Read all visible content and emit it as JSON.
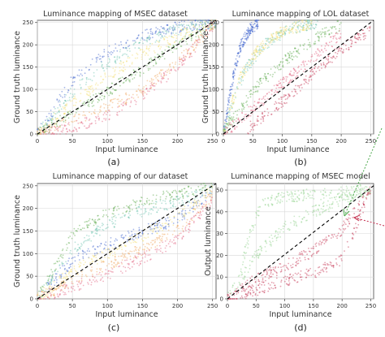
{
  "panels": [
    {
      "title": "Luminance mapping of MSEC dataset",
      "xlabel": "Input luminance",
      "ylabel": "Ground truth luminance",
      "label": "(a)",
      "xticks": [
        "0",
        "50",
        "100",
        "150",
        "200",
        "250"
      ],
      "yticks": [
        "0",
        "50",
        "100",
        "150",
        "200",
        "250"
      ]
    },
    {
      "title": "Luminance mapping of LOL dataset",
      "xlabel": "Input luminance",
      "ylabel": "Ground truth luminance",
      "label": "(b)",
      "xticks": [
        "0",
        "50",
        "100",
        "150",
        "200",
        "250"
      ],
      "yticks": [
        "0",
        "50",
        "100",
        "150",
        "200",
        "250"
      ]
    },
    {
      "title": "Luminance mapping of our dataset",
      "xlabel": "Input luminance",
      "ylabel": "Ground truth luminance",
      "label": "(c)",
      "xticks": [
        "0",
        "50",
        "100",
        "150",
        "200",
        "250"
      ],
      "yticks": [
        "0",
        "50",
        "100",
        "150",
        "200",
        "250"
      ]
    },
    {
      "title": "Luminance mapping of MSEC model",
      "xlabel": "Input luminance",
      "ylabel": "Output luminance",
      "label": "(d)",
      "xticks": [
        "0",
        "50",
        "100",
        "150",
        "200",
        "250"
      ],
      "yticks": [
        "0",
        "10",
        "20",
        "30",
        "40",
        "50"
      ]
    }
  ],
  "chart_data": [
    {
      "type": "scatter",
      "title": "Luminance mapping of MSEC dataset",
      "xlabel": "Input luminance",
      "ylabel": "Ground truth luminance",
      "xlim": [
        0,
        255
      ],
      "ylim": [
        0,
        255
      ],
      "grid": true,
      "reference_line": {
        "x": [
          0,
          255
        ],
        "y": [
          0,
          255
        ],
        "style": "dashed",
        "color": "#000000"
      },
      "series": [
        {
          "color": "#3a5fcd",
          "x": [
            0,
            50,
            100,
            150,
            200,
            255
          ],
          "y": [
            0,
            120,
            185,
            220,
            240,
            250
          ]
        },
        {
          "color": "#6cc4b0",
          "x": [
            0,
            50,
            100,
            150,
            200,
            255
          ],
          "y": [
            0,
            95,
            160,
            205,
            235,
            250
          ]
        },
        {
          "color": "#f0a35c",
          "x": [
            0,
            50,
            100,
            150,
            200,
            255
          ],
          "y": [
            0,
            30,
            60,
            100,
            160,
            250
          ]
        },
        {
          "color": "#e05a7a",
          "x": [
            0,
            50,
            100,
            150,
            200,
            255
          ],
          "y": [
            0,
            15,
            40,
            85,
            150,
            250
          ]
        },
        {
          "color": "#f2dc6b",
          "x": [
            0,
            50,
            100,
            150,
            200,
            255
          ],
          "y": [
            0,
            70,
            130,
            180,
            220,
            250
          ]
        },
        {
          "color": "#5aa84a",
          "x": [
            0,
            50,
            100,
            150,
            200,
            255
          ],
          "y": [
            0,
            45,
            95,
            145,
            200,
            250
          ]
        }
      ]
    },
    {
      "type": "scatter",
      "title": "Luminance mapping of LOL dataset",
      "xlabel": "Input luminance",
      "ylabel": "Ground truth luminance",
      "xlim": [
        0,
        255
      ],
      "ylim": [
        0,
        255
      ],
      "grid": true,
      "reference_line": {
        "x": [
          0,
          255
        ],
        "y": [
          0,
          255
        ],
        "style": "dashed",
        "color": "#000000"
      },
      "series": [
        {
          "color": "#3a5fcd",
          "x": [
            0,
            10,
            20,
            30,
            45,
            60
          ],
          "y": [
            0,
            80,
            150,
            200,
            235,
            250
          ]
        },
        {
          "color": "#6cc4b0",
          "x": [
            0,
            20,
            40,
            70,
            110,
            160
          ],
          "y": [
            0,
            90,
            150,
            200,
            235,
            250
          ]
        },
        {
          "color": "#f2dc6b",
          "x": [
            0,
            15,
            30,
            60,
            100,
            150
          ],
          "y": [
            0,
            70,
            130,
            190,
            230,
            250
          ]
        },
        {
          "color": "#5aa84a",
          "x": [
            0,
            30,
            60,
            100,
            150,
            200
          ],
          "y": [
            0,
            60,
            110,
            160,
            210,
            245
          ]
        },
        {
          "color": "#e05a7a",
          "x": [
            0,
            40,
            80,
            120,
            160,
            200
          ],
          "y": [
            0,
            45,
            90,
            135,
            180,
            225
          ]
        },
        {
          "color": "#c43050",
          "x": [
            40,
            80,
            120,
            160,
            200,
            250
          ],
          "y": [
            10,
            50,
            95,
            145,
            190,
            235
          ]
        }
      ]
    },
    {
      "type": "scatter",
      "title": "Luminance mapping of our dataset",
      "xlabel": "Input luminance",
      "ylabel": "Ground truth luminance",
      "xlim": [
        0,
        255
      ],
      "ylim": [
        0,
        255
      ],
      "grid": true,
      "reference_line": {
        "x": [
          0,
          255
        ],
        "y": [
          0,
          255
        ],
        "style": "dashed",
        "color": "#000000"
      },
      "series": [
        {
          "color": "#3a5fcd",
          "x": [
            0,
            50,
            100,
            150,
            200,
            250
          ],
          "y": [
            0,
            85,
            120,
            150,
            175,
            240
          ]
        },
        {
          "color": "#6cc4b0",
          "x": [
            0,
            50,
            100,
            150,
            200,
            250
          ],
          "y": [
            0,
            110,
            165,
            195,
            215,
            245
          ]
        },
        {
          "color": "#5aa84a",
          "x": [
            0,
            50,
            100,
            150,
            200,
            250
          ],
          "y": [
            0,
            140,
            190,
            215,
            232,
            250
          ]
        },
        {
          "color": "#f2dc6b",
          "x": [
            0,
            50,
            100,
            150,
            200,
            250
          ],
          "y": [
            0,
            60,
            100,
            140,
            180,
            240
          ]
        },
        {
          "color": "#f0a35c",
          "x": [
            0,
            50,
            100,
            150,
            200,
            250
          ],
          "y": [
            0,
            40,
            75,
            110,
            150,
            230
          ]
        },
        {
          "color": "#e05a7a",
          "x": [
            0,
            50,
            100,
            150,
            200,
            250
          ],
          "y": [
            0,
            25,
            55,
            90,
            130,
            220
          ]
        }
      ]
    },
    {
      "type": "scatter",
      "title": "Luminance mapping of MSEC model",
      "xlabel": "Input luminance",
      "ylabel": "Output luminance",
      "xlim": [
        0,
        255
      ],
      "ylim": [
        0,
        53
      ],
      "grid": true,
      "reference_line": {
        "x": [
          0,
          255
        ],
        "y": [
          0,
          52
        ],
        "style": "dashed",
        "color": "#000000"
      },
      "series": [
        {
          "color": "#8fd08a",
          "x": [
            20,
            40,
            60,
            100,
            150,
            200,
            250
          ],
          "y": [
            12,
            30,
            44,
            47,
            48,
            49,
            51
          ]
        },
        {
          "color": "#8fd08a",
          "x": [
            0,
            50,
            100,
            150,
            200,
            250
          ],
          "y": [
            0,
            20,
            33,
            40,
            45,
            50
          ]
        },
        {
          "color": "#c43050",
          "x": [
            0,
            50,
            100,
            150,
            200,
            250
          ],
          "y": [
            0,
            4,
            8,
            12,
            18,
            50
          ]
        },
        {
          "color": "#c43050",
          "x": [
            0,
            50,
            100,
            150,
            200,
            250
          ],
          "y": [
            0,
            9,
            15,
            22,
            32,
            50
          ]
        }
      ]
    }
  ]
}
